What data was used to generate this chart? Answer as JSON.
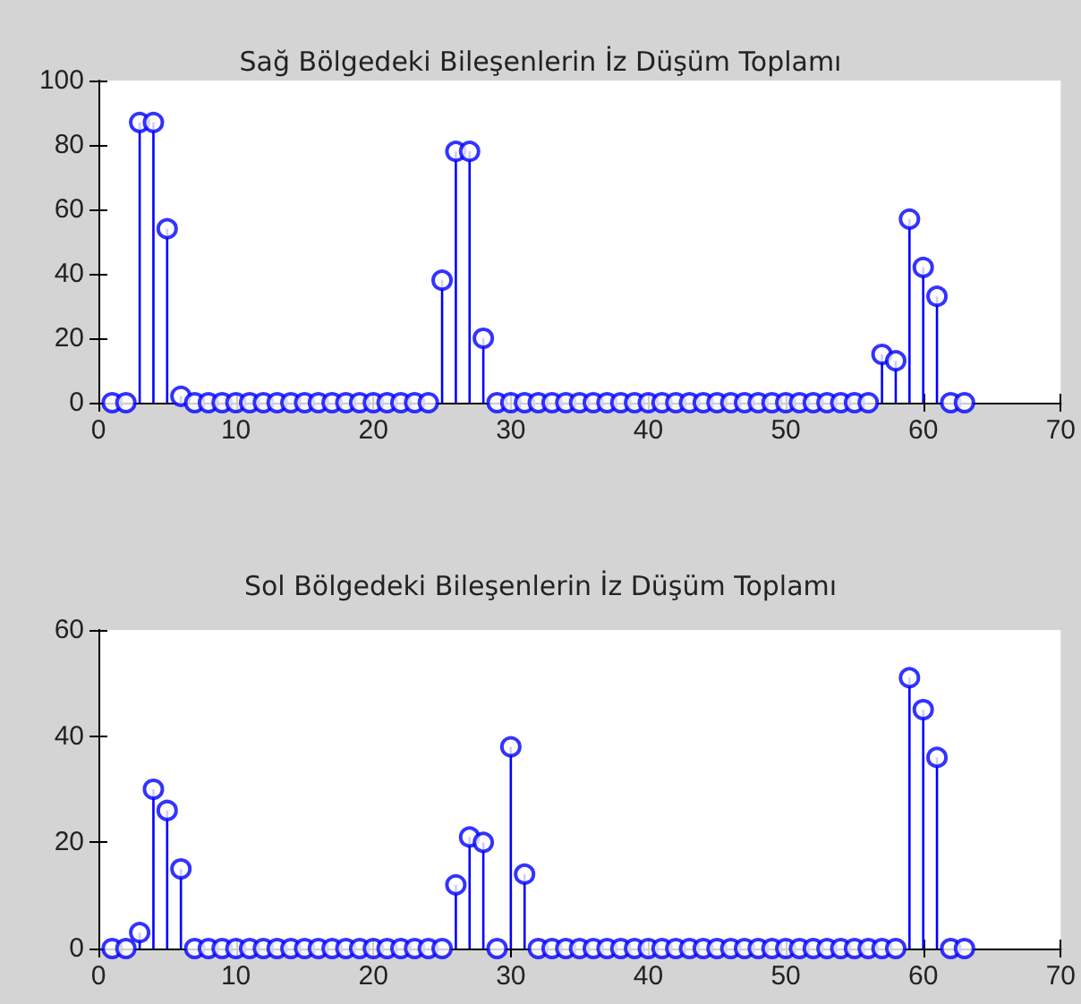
{
  "chart_data": [
    {
      "type": "lollipop",
      "title": "Sağ Bölgedeki Bileşenlerin İz Düşüm Toplamı",
      "x": [
        1,
        2,
        3,
        4,
        5,
        6,
        7,
        8,
        9,
        10,
        11,
        12,
        13,
        14,
        15,
        16,
        17,
        18,
        19,
        20,
        21,
        22,
        23,
        24,
        25,
        26,
        27,
        28,
        29,
        30,
        31,
        32,
        33,
        34,
        35,
        36,
        37,
        38,
        39,
        40,
        41,
        42,
        43,
        44,
        45,
        46,
        47,
        48,
        49,
        50,
        51,
        52,
        53,
        54,
        55,
        56,
        57,
        58,
        59,
        60,
        61,
        62,
        63
      ],
      "values": [
        0,
        0,
        87,
        87,
        54,
        2,
        0,
        0,
        0,
        0,
        0,
        0,
        0,
        0,
        0,
        0,
        0,
        0,
        0,
        0,
        0,
        0,
        0,
        0,
        38,
        78,
        78,
        20,
        0,
        0,
        0,
        0,
        0,
        0,
        0,
        0,
        0,
        0,
        0,
        0,
        0,
        0,
        0,
        0,
        0,
        0,
        0,
        0,
        0,
        0,
        0,
        0,
        0,
        0,
        0,
        0,
        15,
        13,
        57,
        42,
        33,
        0,
        0
      ],
      "color": "#0000ff",
      "marker": "circle",
      "grid": false,
      "xlim": [
        0,
        70
      ],
      "xticks": [
        0,
        10,
        20,
        30,
        40,
        50,
        60,
        70
      ],
      "ylim": [
        0,
        100
      ],
      "yticks": [
        0,
        20,
        40,
        60,
        80,
        100
      ]
    },
    {
      "type": "lollipop",
      "title": "Sol Bölgedeki Bileşenlerin İz Düşüm Toplamı",
      "x": [
        1,
        2,
        3,
        4,
        5,
        6,
        7,
        8,
        9,
        10,
        11,
        12,
        13,
        14,
        15,
        16,
        17,
        18,
        19,
        20,
        21,
        22,
        23,
        24,
        25,
        26,
        27,
        28,
        29,
        30,
        31,
        32,
        33,
        34,
        35,
        36,
        37,
        38,
        39,
        40,
        41,
        42,
        43,
        44,
        45,
        46,
        47,
        48,
        49,
        50,
        51,
        52,
        53,
        54,
        55,
        56,
        57,
        58,
        59,
        60,
        61,
        62,
        63
      ],
      "values": [
        0,
        0,
        3,
        30,
        26,
        15,
        0,
        0,
        0,
        0,
        0,
        0,
        0,
        0,
        0,
        0,
        0,
        0,
        0,
        0,
        0,
        0,
        0,
        0,
        0,
        12,
        21,
        20,
        0,
        38,
        14,
        0,
        0,
        0,
        0,
        0,
        0,
        0,
        0,
        0,
        0,
        0,
        0,
        0,
        0,
        0,
        0,
        0,
        0,
        0,
        0,
        0,
        0,
        0,
        0,
        0,
        0,
        0,
        51,
        45,
        36,
        0,
        0
      ],
      "color": "#0000ff",
      "marker": "circle",
      "grid": false,
      "xlim": [
        0,
        70
      ],
      "xticks": [
        0,
        10,
        20,
        30,
        40,
        50,
        60,
        70
      ],
      "ylim": [
        0,
        60
      ],
      "yticks": [
        0,
        20,
        40,
        60
      ]
    }
  ]
}
